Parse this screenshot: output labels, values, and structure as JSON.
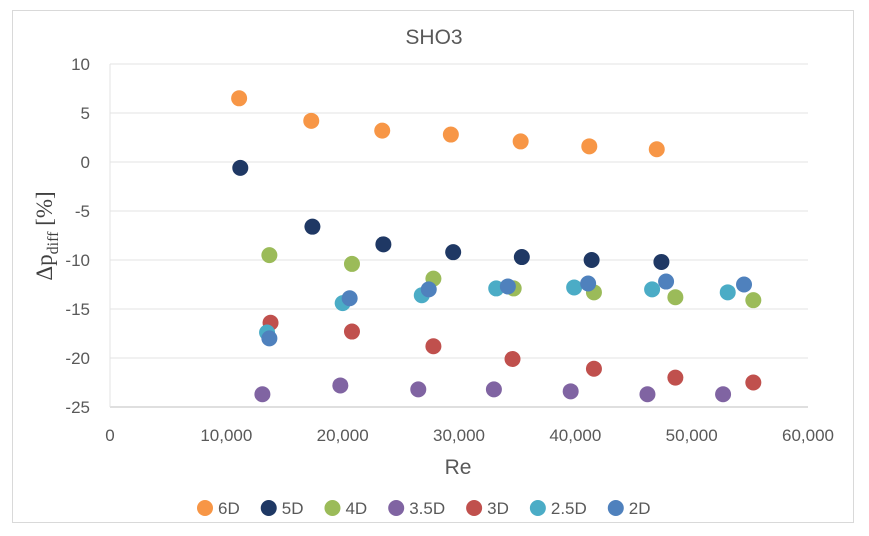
{
  "chart_data": {
    "type": "scatter",
    "title": "SHO3",
    "xlabel": "Re",
    "ylabel": {
      "main": "Δp",
      "subscript": "diff",
      "suffix": " [%]"
    },
    "xlim": [
      0,
      60000
    ],
    "ylim": [
      -25,
      10
    ],
    "x_ticks": [
      0,
      10000,
      20000,
      30000,
      40000,
      50000,
      60000
    ],
    "x_tick_labels": [
      "0",
      "10,000",
      "20,000",
      "30,000",
      "40,000",
      "50,000",
      "60,000"
    ],
    "y_ticks": [
      10,
      5,
      0,
      -5,
      -10,
      -15,
      -20,
      -25
    ],
    "y_tick_labels": [
      "10",
      "5",
      "0",
      "-5",
      "-10",
      "-15",
      "-20",
      "-25"
    ],
    "grid": "horizontal",
    "legend_position": "bottom",
    "series": [
      {
        "name": "6D",
        "color": "#f79646",
        "points": [
          [
            11100,
            6.5
          ],
          [
            17300,
            4.2
          ],
          [
            23400,
            3.2
          ],
          [
            29300,
            2.8
          ],
          [
            35300,
            2.1
          ],
          [
            41200,
            1.6
          ],
          [
            47000,
            1.3
          ]
        ]
      },
      {
        "name": "5D",
        "color": "#1f3864",
        "points": [
          [
            11200,
            -0.6
          ],
          [
            17400,
            -6.6
          ],
          [
            23500,
            -8.4
          ],
          [
            29500,
            -9.2
          ],
          [
            35400,
            -9.7
          ],
          [
            41400,
            -10.0
          ],
          [
            47400,
            -10.2
          ]
        ]
      },
      {
        "name": "4D",
        "color": "#9bbb59",
        "points": [
          [
            13700,
            -9.5
          ],
          [
            20800,
            -10.4
          ],
          [
            27800,
            -11.9
          ],
          [
            34700,
            -12.9
          ],
          [
            41600,
            -13.3
          ],
          [
            48600,
            -13.8
          ],
          [
            55300,
            -14.1
          ]
        ]
      },
      {
        "name": "3.5D",
        "color": "#8064a2",
        "points": [
          [
            13100,
            -23.7
          ],
          [
            19800,
            -22.8
          ],
          [
            26500,
            -23.2
          ],
          [
            33000,
            -23.2
          ],
          [
            39600,
            -23.4
          ],
          [
            46200,
            -23.7
          ],
          [
            52700,
            -23.7
          ]
        ]
      },
      {
        "name": "3D",
        "color": "#c0504d",
        "points": [
          [
            13800,
            -16.4
          ],
          [
            20800,
            -17.3
          ],
          [
            27800,
            -18.8
          ],
          [
            34600,
            -20.1
          ],
          [
            41600,
            -21.1
          ],
          [
            48600,
            -22.0
          ],
          [
            55300,
            -22.5
          ]
        ]
      },
      {
        "name": "2.5D",
        "color": "#4bacc6",
        "points": [
          [
            13500,
            -17.4
          ],
          [
            20000,
            -14.4
          ],
          [
            26800,
            -13.6
          ],
          [
            33200,
            -12.9
          ],
          [
            39900,
            -12.8
          ],
          [
            46600,
            -13.0
          ],
          [
            53100,
            -13.3
          ]
        ]
      },
      {
        "name": "2D",
        "color": "#4f81bd",
        "points": [
          [
            13700,
            -18.0
          ],
          [
            20600,
            -13.9
          ],
          [
            27400,
            -13.0
          ],
          [
            34200,
            -12.7
          ],
          [
            41100,
            -12.4
          ],
          [
            47800,
            -12.2
          ],
          [
            54500,
            -12.5
          ]
        ]
      }
    ]
  }
}
